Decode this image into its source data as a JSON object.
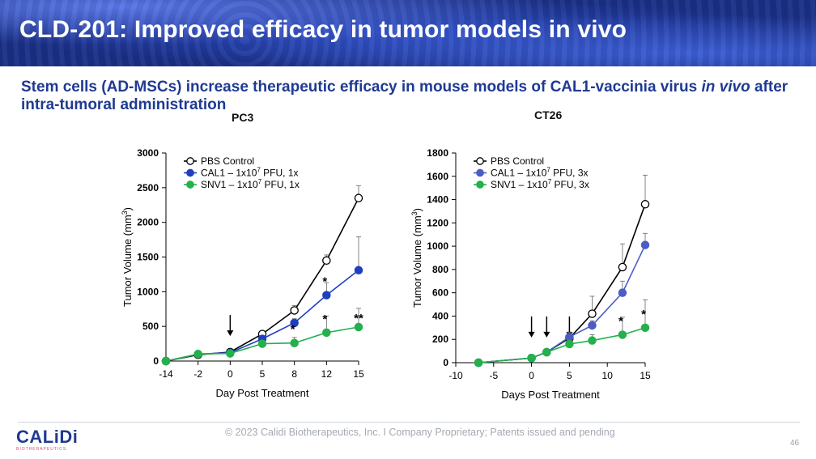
{
  "header": {
    "title": "CLD-201: Improved efficacy in tumor models in vivo"
  },
  "subtitle": {
    "before": "Stem cells (AD-MSCs) increase therapeutic efficacy in mouse models of CAL1-vaccinia virus ",
    "italic": "in vivo",
    "after": " after intra-tumoral administration"
  },
  "footer": {
    "text": "© 2023 Calidi Biotherapeutics, Inc. I  Company Proprietary; Patents issued and pending",
    "page_number": "46",
    "logo_text": "CALiDi",
    "logo_sub": "BIOTHERAPEUTICS"
  },
  "colors": {
    "control": "#000000",
    "cal1_pc3": "#1f3fbf",
    "cal1_ct26": "#4b5cc4",
    "snv1": "#22b14c"
  },
  "chart_data": [
    {
      "type": "line",
      "title": "PC3",
      "xlabel": "Day Post Treatment",
      "ylabel": "Tumor Volume (mm3)",
      "categories": [
        "-14",
        "-2",
        "0",
        "5",
        "8",
        "12",
        "15"
      ],
      "ylim": [
        0,
        3000
      ],
      "yticks": [
        0,
        500,
        1000,
        1500,
        2000,
        2500,
        3000
      ],
      "series": [
        {
          "name": "PBS Control",
          "values": [
            0,
            90,
            130,
            390,
            730,
            1450,
            2350
          ],
          "err": [
            0,
            15,
            20,
            30,
            70,
            80,
            180
          ]
        },
        {
          "name": "CAL1 – 1x10",
          "sup": "7",
          "suffix": " PFU, 1x",
          "values": [
            0,
            100,
            120,
            320,
            550,
            950,
            1310
          ],
          "err": [
            0,
            15,
            20,
            40,
            60,
            180,
            480
          ]
        },
        {
          "name": "SNV1 – 1x10",
          "sup": "7",
          "suffix": " PFU, 1x",
          "values": [
            0,
            100,
            110,
            250,
            260,
            410,
            490
          ],
          "err": [
            0,
            15,
            20,
            40,
            80,
            240,
            270
          ]
        }
      ],
      "annotations": [
        {
          "x": "8",
          "y": 260,
          "text": "*"
        },
        {
          "x": "12",
          "y": 950,
          "text": "*"
        },
        {
          "x": "12",
          "y": 410,
          "text": "*"
        },
        {
          "x": "15",
          "y": 490,
          "text": "**"
        }
      ],
      "arrows": [
        "0"
      ]
    },
    {
      "type": "line",
      "title": "CT26",
      "xlabel": "Days Post Treatment",
      "ylabel": "Tumor Volume (mm3)",
      "x": [
        -7,
        0,
        2,
        5,
        8,
        12,
        15
      ],
      "xlim": [
        -10,
        15
      ],
      "xticks": [
        -10,
        -5,
        0,
        5,
        10,
        15
      ],
      "ylim": [
        0,
        1800
      ],
      "yticks": [
        0,
        200,
        400,
        600,
        800,
        1000,
        1200,
        1400,
        1600,
        1800
      ],
      "series": [
        {
          "name": "PBS Control",
          "values": [
            0,
            40,
            90,
            210,
            420,
            820,
            1360
          ],
          "err": [
            0,
            10,
            15,
            30,
            150,
            200,
            250
          ]
        },
        {
          "name": "CAL1 – 1x10",
          "sup": "7",
          "suffix": " PFU, 3x",
          "values": [
            0,
            40,
            90,
            220,
            320,
            600,
            1010
          ],
          "err": [
            0,
            10,
            15,
            40,
            40,
            100,
            100
          ]
        },
        {
          "name": "SNV1 – 1x10",
          "sup": "7",
          "suffix": " PFU, 3x",
          "values": [
            0,
            40,
            90,
            160,
            190,
            240,
            300
          ],
          "err": [
            0,
            10,
            15,
            40,
            50,
            150,
            240
          ]
        }
      ],
      "annotations": [
        {
          "x": 12,
          "y": 240,
          "text": "*"
        },
        {
          "x": 15,
          "y": 300,
          "text": "*"
        }
      ],
      "arrows": [
        0,
        2,
        5
      ]
    }
  ]
}
